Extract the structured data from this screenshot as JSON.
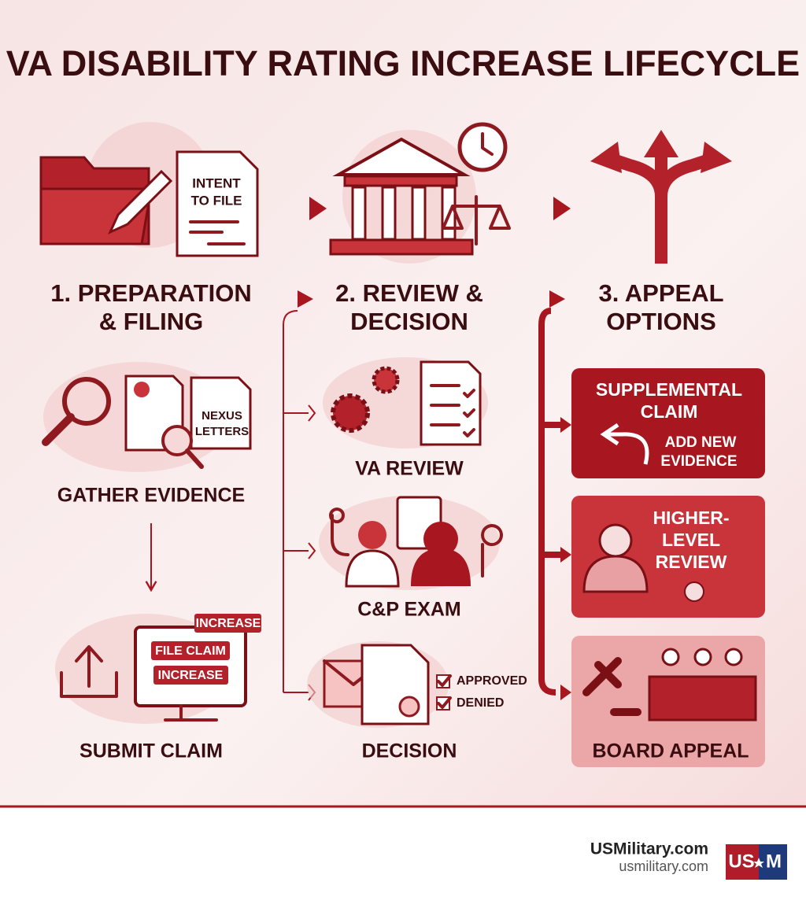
{
  "title": "VA DISABILITY RATING INCREASE LIFECYCLE",
  "stages": [
    {
      "heading": [
        "1. PREPARATION",
        "& FILING"
      ],
      "document_label": [
        "INTENT",
        "TO FILE"
      ],
      "steps": [
        {
          "label": "GATHER EVIDENCE",
          "icon_text": [
            "NEXUS",
            "LETTERS"
          ]
        },
        {
          "label": "SUBMIT CLAIM",
          "icon_text": [
            "INCREASE",
            "FILE CLAIM",
            "INCREASE"
          ]
        }
      ]
    },
    {
      "heading": [
        "2. REVIEW &",
        "DECISION"
      ],
      "steps": [
        {
          "label": "VA REVIEW"
        },
        {
          "label": "C&P EXAM"
        },
        {
          "label": "DECISION",
          "icon_text": [
            "APPROVED",
            "DENIED"
          ]
        }
      ]
    },
    {
      "heading": [
        "3. APPEAL",
        "OPTIONS"
      ],
      "options": [
        {
          "label": [
            "SUPPLEMENTAL",
            "CLAIM"
          ],
          "note": [
            "ADD NEW",
            "EVIDENCE"
          ]
        },
        {
          "label": [
            "HIGHER-",
            "LEVEL",
            "REVIEW"
          ]
        },
        {
          "label": [
            "BOARD APPEAL"
          ]
        }
      ]
    }
  ],
  "footer": {
    "site": "USMilitary.com",
    "url": "usmilitary.com",
    "logo": [
      "US",
      "M"
    ]
  }
}
